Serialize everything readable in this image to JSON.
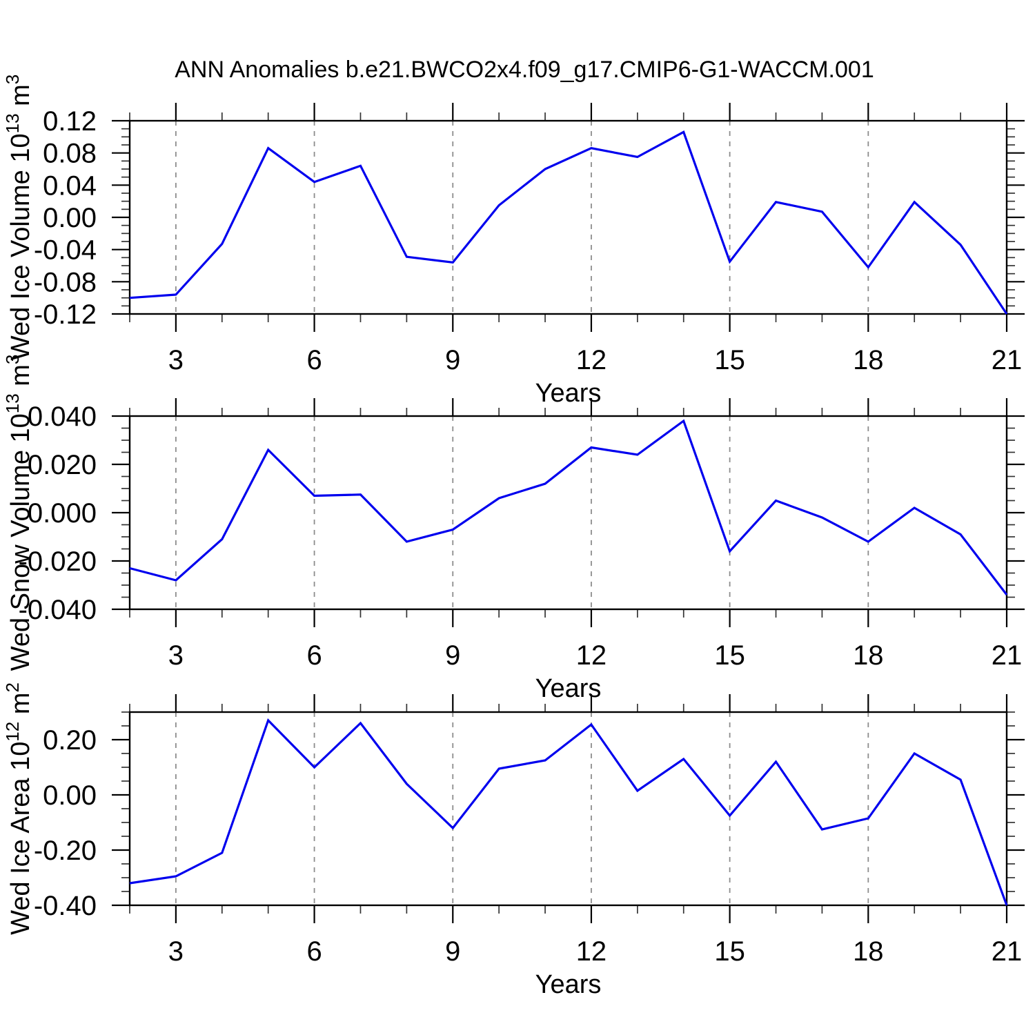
{
  "title": "ANN Anomalies b.e21.BWCO2x4.f09_g17.CMIP6-G1-WACCM.001",
  "figure": {
    "background": "#ffffff",
    "line_color": "#0000EE",
    "frame_color": "#000000",
    "gridline_color": "#8c8c8c",
    "minor_tick_color": "#333333"
  },
  "chart_data": [
    {
      "type": "line",
      "panel": "wed-ice-volume",
      "xlabel": "Years",
      "ylabel": "Wed Ice Volume 10^13 m^3",
      "ylabel_parts": [
        "Wed Ice Volume 10",
        "13",
        " m",
        "3"
      ],
      "x": [
        2,
        3,
        4,
        5,
        6,
        7,
        8,
        9,
        10,
        11,
        12,
        13,
        14,
        15,
        16,
        17,
        18,
        19,
        20,
        21
      ],
      "values": [
        -0.1,
        -0.096,
        -0.033,
        0.086,
        0.044,
        0.064,
        -0.049,
        -0.056,
        0.015,
        0.06,
        0.086,
        0.075,
        0.106,
        -0.055,
        0.019,
        0.007,
        -0.062,
        0.019,
        -0.034,
        -0.12
      ],
      "xlim": [
        2,
        21
      ],
      "ylim": [
        -0.12,
        0.12
      ],
      "yticks": {
        "values": [
          0.12,
          0.08,
          0.04,
          0.0,
          -0.04,
          -0.08,
          -0.12
        ],
        "labels": [
          "0.12",
          "0.08",
          "0.04",
          "0.00",
          "-0.04",
          "-0.08",
          "-0.12"
        ]
      },
      "ytick_minor_step": 0.01,
      "xticks_labeled": [
        3,
        6,
        9,
        12,
        15,
        18,
        21
      ],
      "xtick_labels": [
        "3",
        "6",
        "9",
        "12",
        "15",
        "18",
        "21"
      ],
      "xtick_minor_step": 1,
      "gridlines_x": [
        3,
        6,
        9,
        12,
        15,
        18
      ],
      "grid_style": "dashed-vertical",
      "legend": "none"
    },
    {
      "type": "line",
      "panel": "wed-snow-volume",
      "xlabel": "Years",
      "ylabel": "Wed Snow Volume 10^13 m^3",
      "ylabel_parts": [
        "Wed Snow Volume 10",
        "13",
        " m",
        "3"
      ],
      "x": [
        2,
        3,
        4,
        5,
        6,
        7,
        8,
        9,
        10,
        11,
        12,
        13,
        14,
        15,
        16,
        17,
        18,
        19,
        20,
        21
      ],
      "values": [
        -0.023,
        -0.028,
        -0.011,
        0.026,
        0.007,
        0.0075,
        -0.012,
        -0.007,
        0.006,
        0.012,
        0.027,
        0.024,
        0.038,
        -0.016,
        0.005,
        -0.002,
        -0.012,
        0.002,
        -0.009,
        -0.034
      ],
      "xlim": [
        2,
        21
      ],
      "ylim": [
        -0.04,
        0.04
      ],
      "yticks": {
        "values": [
          0.04,
          0.02,
          0.0,
          -0.02,
          -0.04
        ],
        "labels": [
          "0.040",
          "0.020",
          "0.000",
          "-0.020",
          "-0.040"
        ]
      },
      "ytick_minor_step": 0.005,
      "xticks_labeled": [
        3,
        6,
        9,
        12,
        15,
        18,
        21
      ],
      "xtick_labels": [
        "3",
        "6",
        "9",
        "12",
        "15",
        "18",
        "21"
      ],
      "xtick_minor_step": 1,
      "gridlines_x": [
        3,
        6,
        9,
        12,
        15,
        18
      ],
      "grid_style": "dashed-vertical",
      "legend": "none"
    },
    {
      "type": "line",
      "panel": "wed-ice-area",
      "xlabel": "Years",
      "ylabel": "Wed Ice Area 10^12 m^2",
      "ylabel_parts": [
        "Wed Ice Area 10",
        "12",
        " m",
        "2"
      ],
      "x": [
        2,
        3,
        4,
        5,
        6,
        7,
        8,
        9,
        10,
        11,
        12,
        13,
        14,
        15,
        16,
        17,
        18,
        19,
        20,
        21
      ],
      "values": [
        -0.32,
        -0.295,
        -0.21,
        0.27,
        0.1,
        0.26,
        0.04,
        -0.12,
        0.095,
        0.125,
        0.255,
        0.015,
        0.13,
        -0.075,
        0.12,
        -0.125,
        -0.085,
        0.15,
        0.055,
        -0.4
      ],
      "xlim": [
        2,
        21
      ],
      "ylim": [
        -0.4,
        0.3
      ],
      "yticks": {
        "values": [
          0.2,
          0.0,
          -0.2,
          -0.4
        ],
        "labels": [
          "0.20",
          "0.00",
          "-0.20",
          "-0.40"
        ]
      },
      "ytick_minor_step": 0.05,
      "xticks_labeled": [
        3,
        6,
        9,
        12,
        15,
        18,
        21
      ],
      "xtick_labels": [
        "3",
        "6",
        "9",
        "12",
        "15",
        "18",
        "21"
      ],
      "xtick_minor_step": 1,
      "gridlines_x": [
        3,
        6,
        9,
        12,
        15,
        18
      ],
      "grid_style": "dashed-vertical",
      "legend": "none"
    }
  ]
}
